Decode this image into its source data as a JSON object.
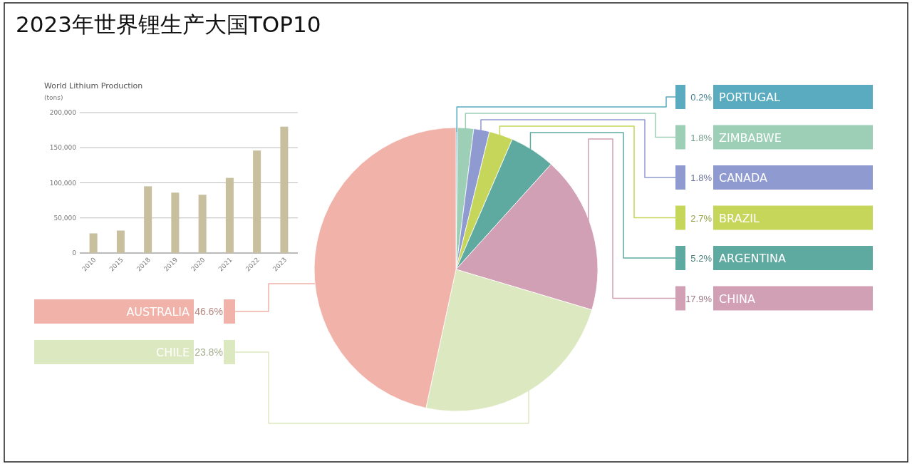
{
  "chart_data": [
    {
      "type": "other",
      "title": "2023年世界锂生产大国TOP10"
    },
    {
      "type": "bar",
      "title": "World Lithium Production",
      "ylabel": "(tons)",
      "categories": [
        "2010",
        "2015",
        "2018",
        "2019",
        "2020",
        "2021",
        "2022",
        "2023"
      ],
      "values": [
        28000,
        32000,
        95000,
        86000,
        83000,
        107000,
        146000,
        180000
      ],
      "color": "#c8bf9e",
      "ylim": [
        0,
        200000
      ],
      "yticks": [
        {
          "value": 0,
          "label": "0"
        },
        {
          "value": 50000,
          "label": "50,000"
        },
        {
          "value": 100000,
          "label": "100,000"
        },
        {
          "value": 150000,
          "label": "150,000"
        },
        {
          "value": 200000,
          "label": "200,000"
        }
      ],
      "grid": "y"
    },
    {
      "type": "pie",
      "categories": [
        "PORTUGAL",
        "ZIMBABWE",
        "CANADA",
        "BRAZIL",
        "ARGENTINA",
        "CHINA",
        "CHILE",
        "AUSTRALIA"
      ],
      "values": [
        0.2,
        1.8,
        1.8,
        2.7,
        5.2,
        17.9,
        23.8,
        46.6
      ],
      "colors": [
        "#5aabbf",
        "#9ccfb6",
        "#8e9ad0",
        "#c5d65a",
        "#5eaaa0",
        "#d1a0b4",
        "#dce8bf",
        "#f0b2a9"
      ],
      "value_labels": [
        "0.2%",
        "1.8%",
        "1.8%",
        "2.7%",
        "5.2%",
        "17.9%",
        "23.8%",
        "46.6%"
      ]
    }
  ]
}
